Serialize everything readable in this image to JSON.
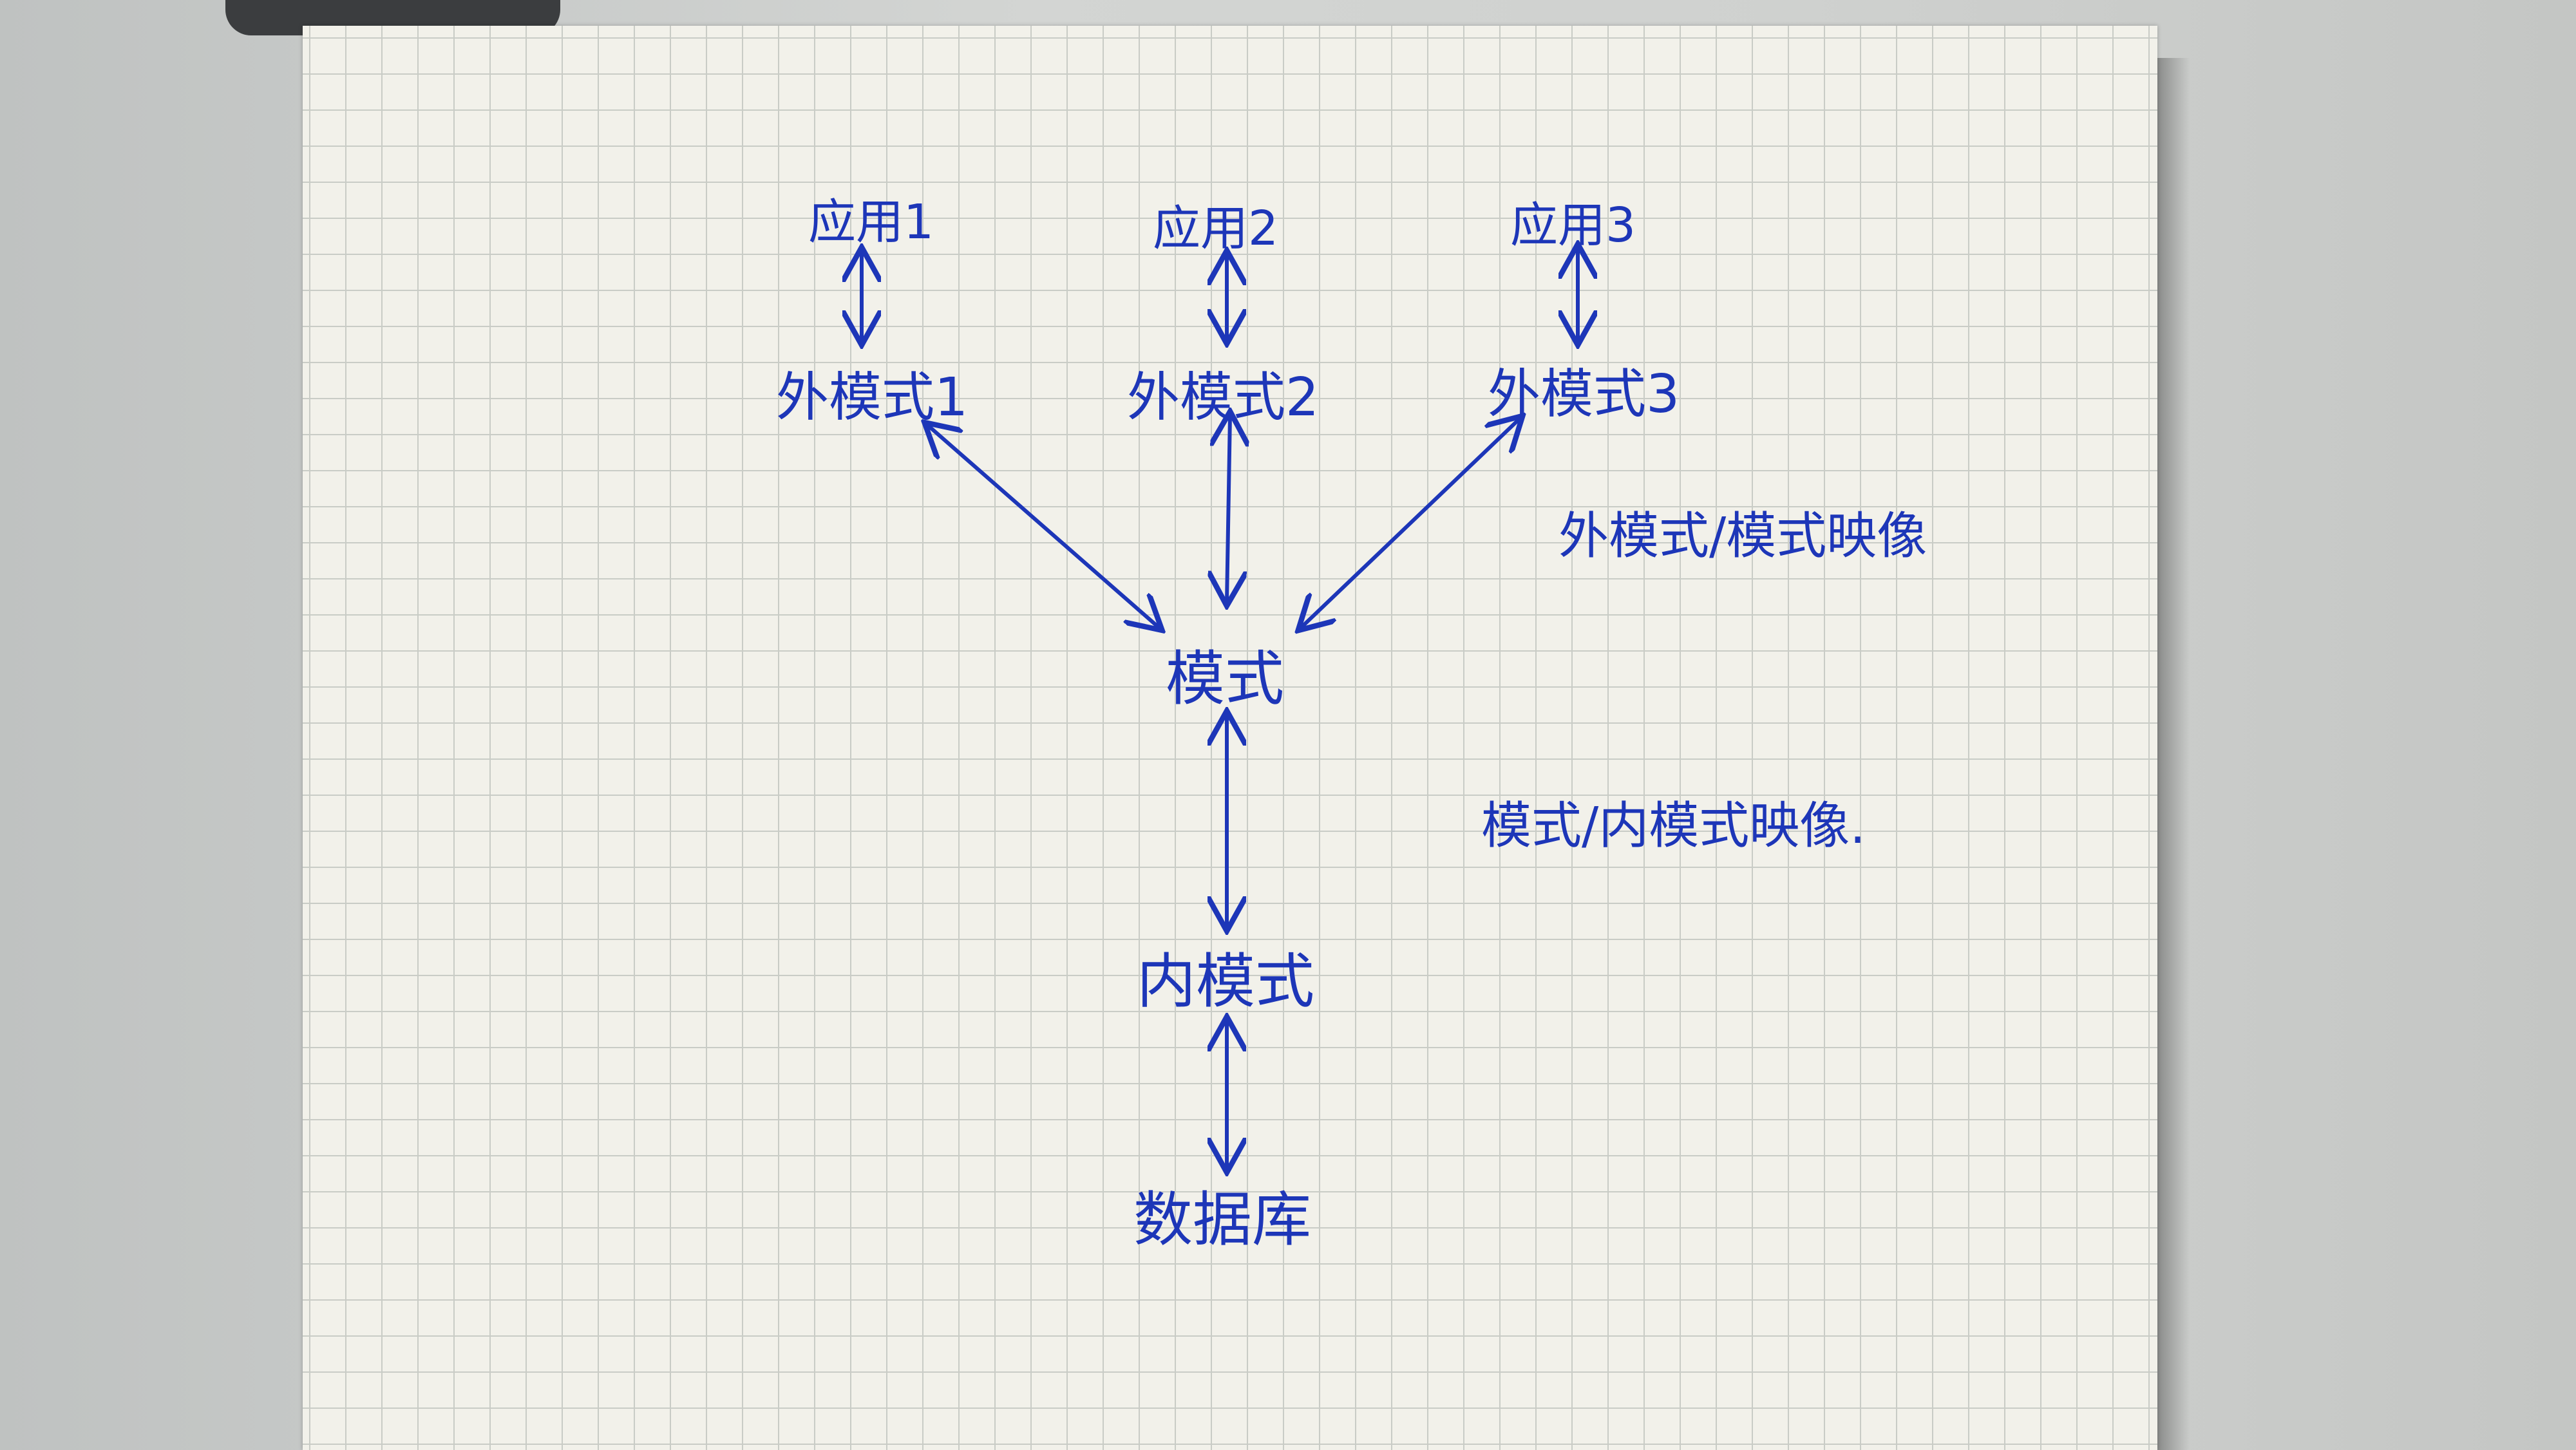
{
  "nodes": {
    "app1": "应用1",
    "app2": "应用2",
    "app3": "应用3",
    "ext1": "外模式1",
    "ext2": "外模式2",
    "ext3": "外模式3",
    "schema": "模式",
    "internal": "内模式",
    "database": "数据库"
  },
  "annotations": {
    "external_mapping": "外模式/模式映像",
    "internal_mapping": "模式/内模式映像."
  },
  "colors": {
    "ink": "#1d36b8",
    "paper": "#f2f1ea",
    "grid": "#c9ccc6"
  }
}
